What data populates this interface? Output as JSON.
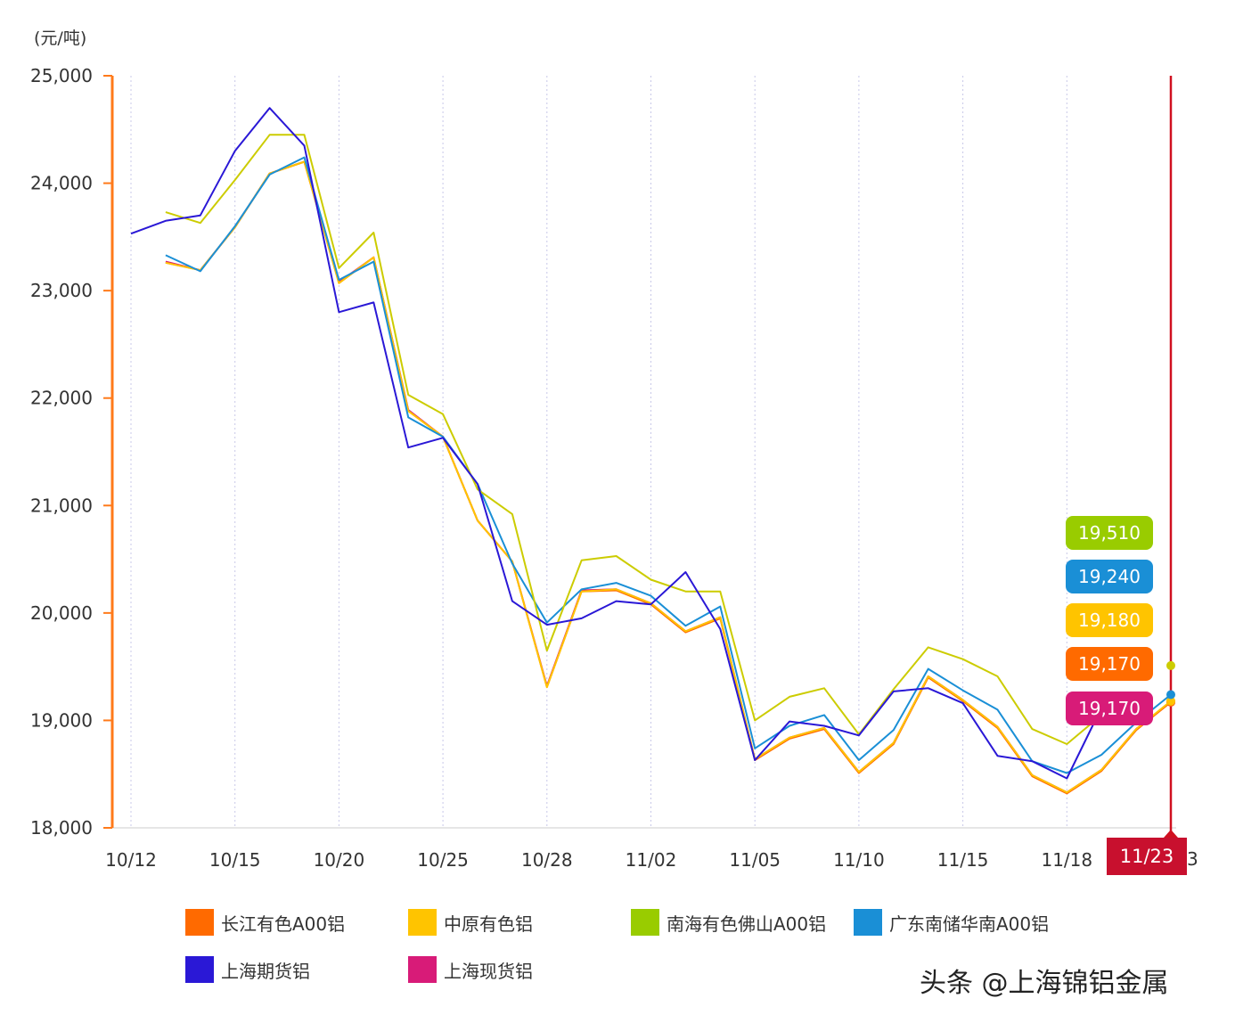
{
  "unit_label": "(元/吨)",
  "watermark": "头条 @上海锦铝金属",
  "cursor": {
    "date_label": "11/23",
    "clipped_tail": "3",
    "values": [
      {
        "series": "南海有色佛山A00铝",
        "text": "19,510",
        "color": "#99cc00"
      },
      {
        "series": "广东南储华南A00铝",
        "text": "19,240",
        "color": "#1a8fd6"
      },
      {
        "series": "中原有色铝",
        "text": "19,180",
        "color": "#ffc400"
      },
      {
        "series": "长江有色A00铝",
        "text": "19,170",
        "color": "#ff6a00"
      },
      {
        "series": "上海现货铝",
        "text": "19,170",
        "color": "#d81b78"
      }
    ]
  },
  "legend": [
    {
      "name": "长江有色A00铝",
      "color": "#ff6a00"
    },
    {
      "name": "中原有色铝",
      "color": "#ffc400"
    },
    {
      "name": "南海有色佛山A00铝",
      "color": "#99cc00"
    },
    {
      "name": "广东南储华南A00铝",
      "color": "#1a8fd6"
    },
    {
      "name": "上海期货铝",
      "color": "#2a18d6"
    },
    {
      "name": "上海现货铝",
      "color": "#d81b78"
    }
  ],
  "chart_data": {
    "type": "line",
    "xlabel": "",
    "ylabel": "",
    "ylim": [
      18000,
      25000
    ],
    "yticks": [
      18000,
      19000,
      20000,
      21000,
      22000,
      23000,
      24000,
      25000
    ],
    "ytick_labels": [
      "18,000",
      "19,000",
      "20,000",
      "21,000",
      "22,000",
      "23,000",
      "24,000",
      "25,000"
    ],
    "x_tick_labels": [
      "10/12",
      "10/15",
      "10/20",
      "10/25",
      "10/28",
      "11/02",
      "11/05",
      "11/10",
      "11/15",
      "11/18"
    ],
    "x_tick_index": [
      0,
      3,
      6,
      9,
      12,
      15,
      18,
      21,
      24,
      27
    ],
    "num_points": 31,
    "grid": "vertical dotted",
    "legend_position": "bottom",
    "series": [
      {
        "name": "上海期货铝",
        "color": "#2a18d6",
        "values": [
          23530,
          23650,
          23700,
          24300,
          24700,
          24350,
          22800,
          22890,
          21540,
          21630,
          21200,
          20110,
          19890,
          19950,
          20110,
          20080,
          20380,
          19850,
          18630,
          18990,
          18950,
          18860,
          19270,
          19300,
          19160,
          18670,
          18620,
          18460,
          19120,
          null,
          null
        ]
      },
      {
        "name": "南海有色佛山A00铝",
        "color": "#cccc00",
        "values": [
          null,
          23730,
          23630,
          24030,
          24450,
          24450,
          23210,
          23540,
          22030,
          21850,
          21150,
          20920,
          19650,
          20490,
          20530,
          20310,
          20200,
          20200,
          19000,
          19220,
          19300,
          18870,
          19290,
          19680,
          19570,
          19410,
          18920,
          18780,
          19050,
          null,
          19510
        ]
      },
      {
        "name": "广东南储华南A00铝",
        "color": "#1a8fd6",
        "values": [
          null,
          23330,
          23180,
          23600,
          24080,
          24240,
          23100,
          23270,
          21820,
          21640,
          21200,
          20460,
          19910,
          20220,
          20280,
          20160,
          19880,
          20060,
          18740,
          18950,
          19050,
          18630,
          18910,
          19480,
          19280,
          19100,
          18620,
          18510,
          18680,
          18980,
          19240
        ]
      },
      {
        "name": "中原有色铝",
        "color": "#ffc400",
        "values": [
          null,
          23260,
          23190,
          23590,
          24090,
          24200,
          23070,
          23310,
          21880,
          21640,
          20860,
          20480,
          19310,
          20200,
          20220,
          20090,
          19830,
          19960,
          18640,
          18840,
          18930,
          18520,
          18790,
          19410,
          19190,
          18940,
          18490,
          18330,
          18540,
          18920,
          19180
        ]
      },
      {
        "name": "长江有色A00铝",
        "color": "#ff6a00",
        "values": [
          null,
          23260,
          23190,
          23590,
          24090,
          24200,
          23070,
          23310,
          21880,
          21640,
          20860,
          20480,
          19310,
          20200,
          20210,
          20080,
          19820,
          19950,
          18630,
          18830,
          18920,
          18510,
          18780,
          19400,
          19180,
          18930,
          18480,
          18320,
          18530,
          18910,
          19170
        ]
      },
      {
        "name": "上海现货铝",
        "color": "#d81b78",
        "values": [
          null,
          23270,
          23190,
          23590,
          24090,
          24200,
          23080,
          23310,
          21890,
          21640,
          20860,
          20480,
          19320,
          20210,
          20220,
          20090,
          19830,
          19960,
          18640,
          18840,
          18930,
          18520,
          18790,
          19410,
          19190,
          18940,
          18490,
          18330,
          18540,
          18920,
          19170
        ]
      }
    ]
  }
}
